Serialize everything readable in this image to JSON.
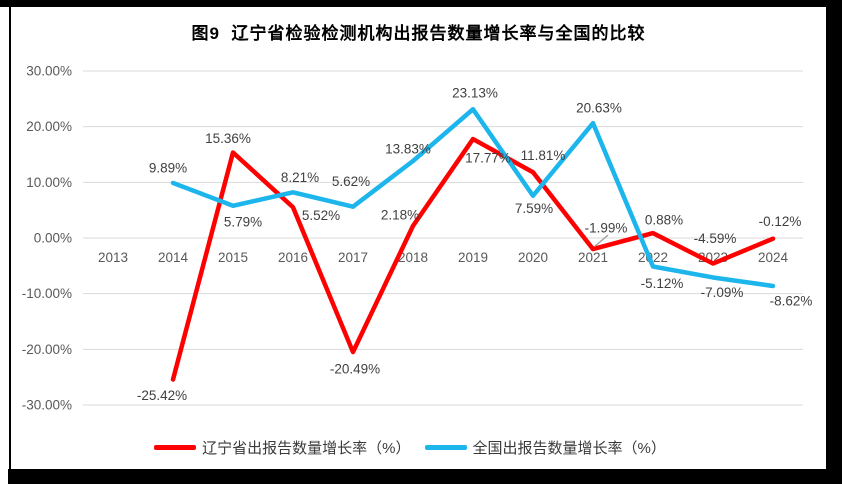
{
  "window": {
    "background": "#FFFFFF",
    "frame_color": "#000000"
  },
  "chart_data": {
    "type": "line",
    "title": "图9  辽宁省检验检测机构出报告数量增长率与全国的比较",
    "categories": [
      "2013",
      "2014",
      "2015",
      "2016",
      "2017",
      "2018",
      "2019",
      "2020",
      "2021",
      "2022",
      "2023",
      "2024"
    ],
    "series": [
      {
        "name": "辽宁省出报告数量增长率（%）",
        "color": "#FF0000",
        "values": [
          null,
          -25.42,
          15.36,
          5.52,
          -20.49,
          2.18,
          17.77,
          11.81,
          -1.99,
          0.88,
          -4.59,
          -0.12
        ],
        "label_offsets": [
          null,
          [
            -11,
            16
          ],
          [
            -5,
            -14
          ],
          [
            28,
            8
          ],
          [
            2,
            17
          ],
          [
            -13,
            -11
          ],
          [
            15,
            19
          ],
          [
            10,
            -17
          ],
          [
            13,
            -21
          ],
          [
            11,
            -13
          ],
          [
            2,
            -25
          ],
          [
            7,
            -17
          ]
        ]
      },
      {
        "name": "全国出报告数量增长率（%）",
        "color": "#1CB5EC",
        "values": [
          null,
          9.89,
          5.79,
          8.21,
          5.62,
          13.83,
          23.13,
          7.59,
          20.63,
          -5.12,
          -7.09,
          -8.62
        ],
        "label_offsets": [
          null,
          [
            -5,
            -15
          ],
          [
            10,
            16
          ],
          [
            7,
            -15
          ],
          [
            -2,
            -25
          ],
          [
            -5,
            -12
          ],
          [
            2,
            -16
          ],
          [
            1,
            13
          ],
          [
            6,
            -15
          ],
          [
            9,
            17
          ],
          [
            9,
            15
          ],
          [
            18,
            15
          ]
        ]
      }
    ],
    "ylim": [
      -30,
      30
    ],
    "ytick_step": 10,
    "ytick_labels": [
      "-30.00%",
      "-20.00%",
      "-10.00%",
      "0.00%",
      "10.00%",
      "20.00%",
      "30.00%"
    ],
    "grid": true,
    "legend_position": "bottom",
    "axis_color": "#595959",
    "grid_color": "#D9D9D9",
    "label_color": "#404040",
    "leader_line": {
      "series_index": 0,
      "point_index": 8
    }
  }
}
